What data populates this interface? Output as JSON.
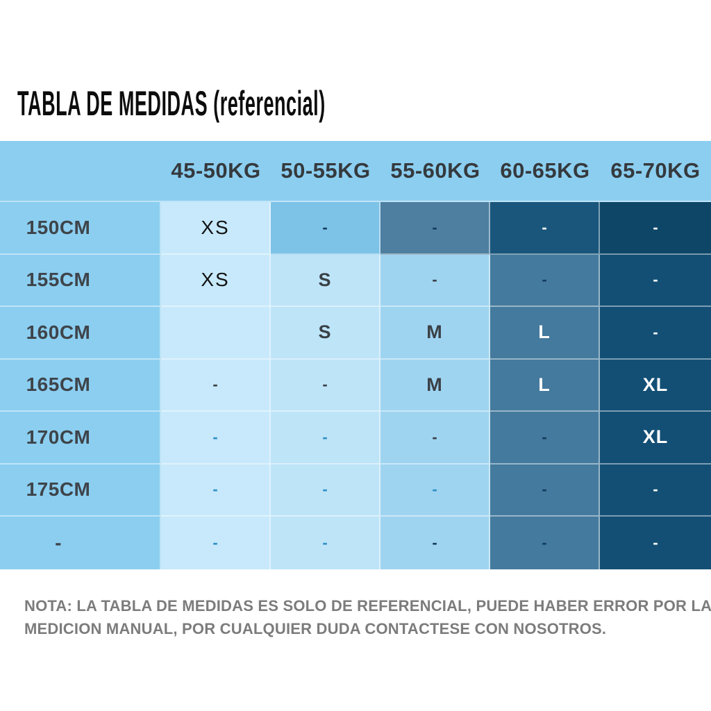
{
  "title": "TABLA DE MEDIDAS (referencial)",
  "note": {
    "line1": "NOTA: LA TABLA DE MEDIDAS ES SOLO DE REFERENCIAL, PUEDE HABER ERROR POR LA",
    "line2": "MEDICION MANUAL, POR CUALQUIER DUDA CONTACTESE CON NOSOTROS."
  },
  "palette": {
    "base": "#8bcef0",
    "light1": "#c7e9fb",
    "light2": "#bee4f8",
    "light3": "#9fd4f1",
    "mid": "#7dc2e7",
    "steel": "#447a9d",
    "steelLight": "#4e7fa0",
    "navy": "#134f75",
    "navyMid": "#1a567c",
    "navyDeep": "#0e4668",
    "black": "#121212",
    "inkDark": "#3a4046",
    "inkNavy": "#123b5c",
    "inkBlue": "#2f8fc4",
    "white": "#ffffff"
  },
  "table": {
    "columns": [
      "45-50KG",
      "50-55KG",
      "55-60KG",
      "60-65KG",
      "65-70KG"
    ],
    "rows": [
      {
        "label": "150CM",
        "cells": [
          {
            "v": "XS",
            "bg": "light1",
            "fg": "black",
            "kind": "xs"
          },
          {
            "v": "-",
            "bg": "mid",
            "fg": "inkNavy",
            "kind": "dash"
          },
          {
            "v": "-",
            "bg": "steelLight",
            "fg": "inkNavy",
            "kind": "dash"
          },
          {
            "v": "-",
            "bg": "navyMid",
            "fg": "white",
            "kind": "dash"
          },
          {
            "v": "-",
            "bg": "navyDeep",
            "fg": "white",
            "kind": "dash"
          }
        ]
      },
      {
        "label": "155CM",
        "cells": [
          {
            "v": "XS",
            "bg": "light1",
            "fg": "black",
            "kind": "xs"
          },
          {
            "v": "S",
            "bg": "light2",
            "fg": "inkDark",
            "kind": "size"
          },
          {
            "v": "-",
            "bg": "light3",
            "fg": "inkDark",
            "kind": "dash"
          },
          {
            "v": "-",
            "bg": "steel",
            "fg": "inkNavy",
            "kind": "dash"
          },
          {
            "v": "-",
            "bg": "navy",
            "fg": "white",
            "kind": "dash"
          }
        ]
      },
      {
        "label": "160CM",
        "cells": [
          {
            "v": "",
            "bg": "light1",
            "fg": "inkDark",
            "kind": "empty"
          },
          {
            "v": "S",
            "bg": "light2",
            "fg": "inkDark",
            "kind": "size"
          },
          {
            "v": "M",
            "bg": "light3",
            "fg": "inkDark",
            "kind": "size"
          },
          {
            "v": "L",
            "bg": "steel",
            "fg": "white",
            "kind": "size"
          },
          {
            "v": "-",
            "bg": "navy",
            "fg": "white",
            "kind": "dash"
          }
        ]
      },
      {
        "label": "165CM",
        "cells": [
          {
            "v": "-",
            "bg": "light1",
            "fg": "inkDark",
            "kind": "dash"
          },
          {
            "v": "-",
            "bg": "light2",
            "fg": "inkDark",
            "kind": "dash"
          },
          {
            "v": "M",
            "bg": "light3",
            "fg": "inkDark",
            "kind": "size"
          },
          {
            "v": "L",
            "bg": "steel",
            "fg": "white",
            "kind": "size"
          },
          {
            "v": "XL",
            "bg": "navy",
            "fg": "white",
            "kind": "size"
          }
        ]
      },
      {
        "label": "170CM",
        "cells": [
          {
            "v": "-",
            "bg": "light1",
            "fg": "inkBlue",
            "kind": "dash"
          },
          {
            "v": "-",
            "bg": "light2",
            "fg": "inkBlue",
            "kind": "dash"
          },
          {
            "v": "-",
            "bg": "light3",
            "fg": "inkDark",
            "kind": "dash"
          },
          {
            "v": "-",
            "bg": "steel",
            "fg": "inkNavy",
            "kind": "dash"
          },
          {
            "v": "XL",
            "bg": "navy",
            "fg": "white",
            "kind": "size"
          }
        ]
      },
      {
        "label": "175CM",
        "cells": [
          {
            "v": "-",
            "bg": "light1",
            "fg": "inkBlue",
            "kind": "dash"
          },
          {
            "v": "-",
            "bg": "light2",
            "fg": "inkBlue",
            "kind": "dash"
          },
          {
            "v": "-",
            "bg": "light3",
            "fg": "inkBlue",
            "kind": "dash"
          },
          {
            "v": "-",
            "bg": "steel",
            "fg": "inkNavy",
            "kind": "dash"
          },
          {
            "v": "-",
            "bg": "navy",
            "fg": "white",
            "kind": "dash"
          }
        ]
      },
      {
        "label": "-",
        "cells": [
          {
            "v": "-",
            "bg": "light1",
            "fg": "inkBlue",
            "kind": "dash"
          },
          {
            "v": "-",
            "bg": "light2",
            "fg": "inkBlue",
            "kind": "dash"
          },
          {
            "v": "-",
            "bg": "light3",
            "fg": "inkNavy",
            "kind": "dash"
          },
          {
            "v": "-",
            "bg": "steel",
            "fg": "inkNavy",
            "kind": "dash"
          },
          {
            "v": "-",
            "bg": "navy",
            "fg": "white",
            "kind": "dash"
          }
        ]
      }
    ]
  },
  "chart_data": {
    "type": "table",
    "title": "TABLA DE MEDIDAS (referencial)",
    "columns": [
      "45-50KG",
      "50-55KG",
      "55-60KG",
      "60-65KG",
      "65-70KG"
    ],
    "rows": [
      "150CM",
      "155CM",
      "160CM",
      "165CM",
      "170CM",
      "175CM",
      "-"
    ],
    "values": [
      [
        "XS",
        "-",
        "-",
        "-",
        "-"
      ],
      [
        "XS",
        "S",
        "-",
        "-",
        "-"
      ],
      [
        "",
        "S",
        "M",
        "L",
        "-"
      ],
      [
        "-",
        "-",
        "M",
        "L",
        "XL"
      ],
      [
        "-",
        "-",
        "-",
        "-",
        "XL"
      ],
      [
        "-",
        "-",
        "-",
        "-",
        "-"
      ],
      [
        "-",
        "-",
        "-",
        "-",
        "-"
      ]
    ],
    "note": "NOTA: LA TABLA DE MEDIDAS ES SOLO DE REFERENCIAL, PUEDE HABER ERROR POR LA MEDICION MANUAL, POR CUALQUIER DUDA CONTACTESE CON NOSOTROS."
  }
}
